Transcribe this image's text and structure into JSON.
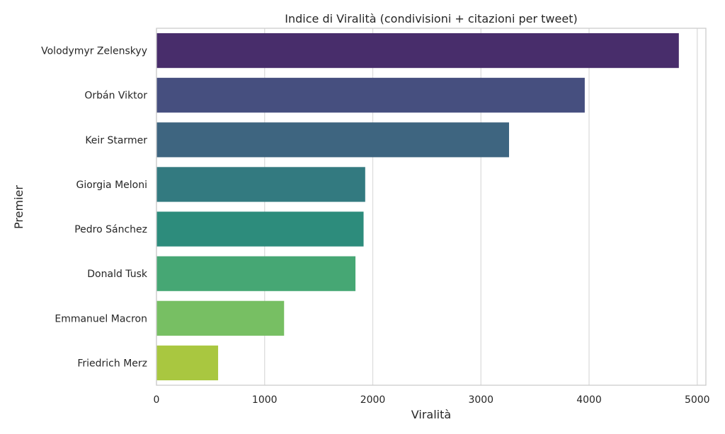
{
  "chart_data": {
    "type": "bar",
    "orientation": "horizontal",
    "title": "Indice di Viralità (condivisioni + citazioni per tweet)",
    "xlabel": "Viralità",
    "ylabel": "Premier",
    "categories": [
      "Volodymyr Zelenskyy",
      "Orbán Viktor",
      "Keir Starmer",
      "Giorgia Meloni",
      "Pedro Sánchez",
      "Donald Tusk",
      "Emmanuel Macron",
      "Friedrich Merz"
    ],
    "values": [
      4830,
      3960,
      3260,
      1930,
      1915,
      1840,
      1180,
      570
    ],
    "colors": [
      "#482d6b",
      "#464f7f",
      "#3e6580",
      "#337a80",
      "#2d8c7c",
      "#46a774",
      "#77bf63",
      "#a9c740"
    ],
    "xlim": [
      0,
      5080
    ],
    "xticks": [
      0,
      1000,
      2000,
      3000,
      4000,
      5000
    ],
    "xtick_labels": [
      "0",
      "1000",
      "2000",
      "3000",
      "4000",
      "5000"
    ],
    "grid": true,
    "legend": "none"
  }
}
